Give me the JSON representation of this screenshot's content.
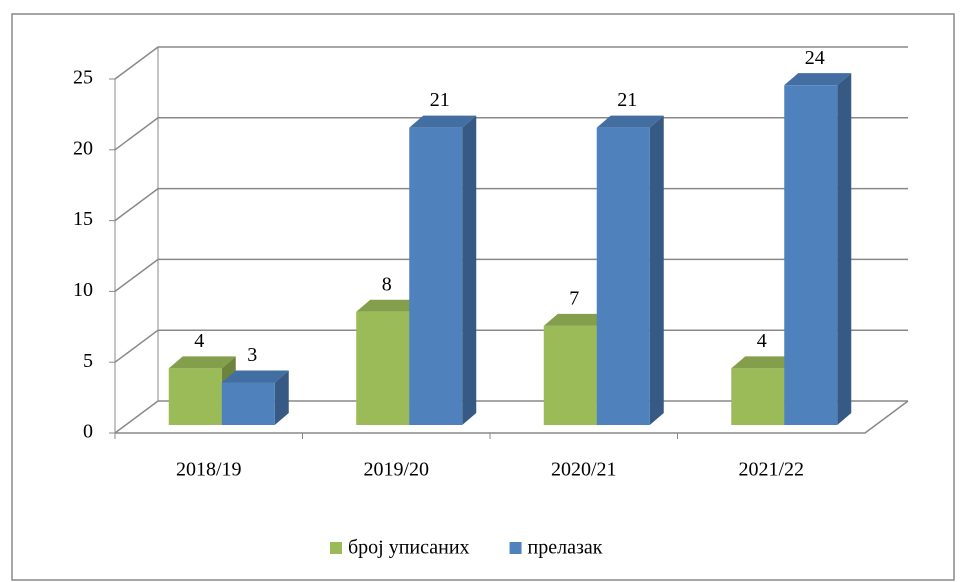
{
  "chart_data": {
    "type": "bar3d",
    "categories": [
      "2018/19",
      "2019/20",
      "2020/21",
      "2021/22"
    ],
    "series": [
      {
        "name": "број уписаних",
        "color": "#9bbb59",
        "values": [
          4,
          8,
          7,
          4
        ]
      },
      {
        "name": "прелазак",
        "color": "#4f81bd",
        "values": [
          3,
          21,
          21,
          24
        ]
      }
    ],
    "ylim": [
      0,
      25
    ],
    "yticks": [
      0,
      5,
      10,
      15,
      20,
      25
    ],
    "grid": true,
    "legend": "bottom"
  }
}
